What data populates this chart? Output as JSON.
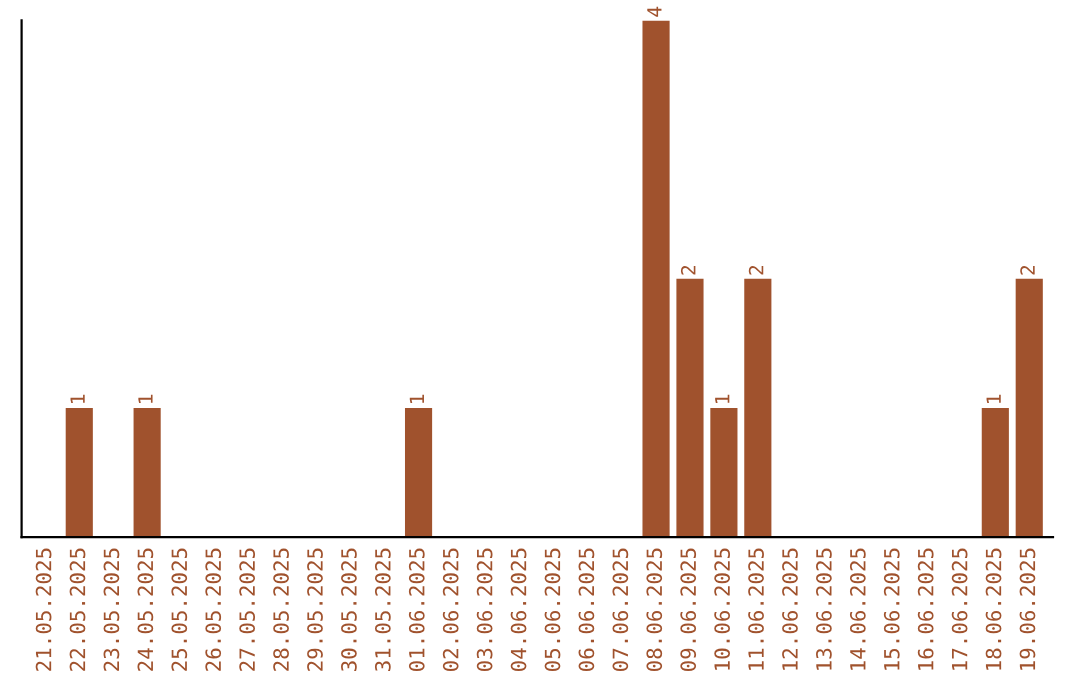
{
  "chart_data": {
    "type": "bar",
    "categories": [
      "21.05.2025",
      "22.05.2025",
      "23.05.2025",
      "24.05.2025",
      "25.05.2025",
      "26.05.2025",
      "27.05.2025",
      "28.05.2025",
      "29.05.2025",
      "30.05.2025",
      "31.05.2025",
      "01.06.2025",
      "02.06.2025",
      "03.06.2025",
      "04.06.2025",
      "05.06.2025",
      "06.06.2025",
      "07.06.2025",
      "08.06.2025",
      "09.06.2025",
      "10.06.2025",
      "11.06.2025",
      "12.06.2025",
      "13.06.2025",
      "14.06.2025",
      "15.06.2025",
      "16.06.2025",
      "17.06.2025",
      "18.06.2025",
      "19.06.2025"
    ],
    "values": [
      0,
      1,
      0,
      1,
      0,
      0,
      0,
      0,
      0,
      0,
      0,
      1,
      0,
      0,
      0,
      0,
      0,
      0,
      4,
      2,
      1,
      2,
      0,
      0,
      0,
      0,
      0,
      0,
      1,
      2
    ],
    "value_labels": [
      null,
      "1",
      null,
      "1",
      null,
      null,
      null,
      null,
      null,
      null,
      null,
      "1",
      null,
      null,
      null,
      null,
      null,
      null,
      "4",
      "2",
      "1",
      "2",
      null,
      null,
      null,
      null,
      null,
      null,
      "1",
      "2"
    ],
    "color": "#a0522d",
    "ylim": [
      0,
      4
    ],
    "tick_labels": "x",
    "grid": false
  }
}
